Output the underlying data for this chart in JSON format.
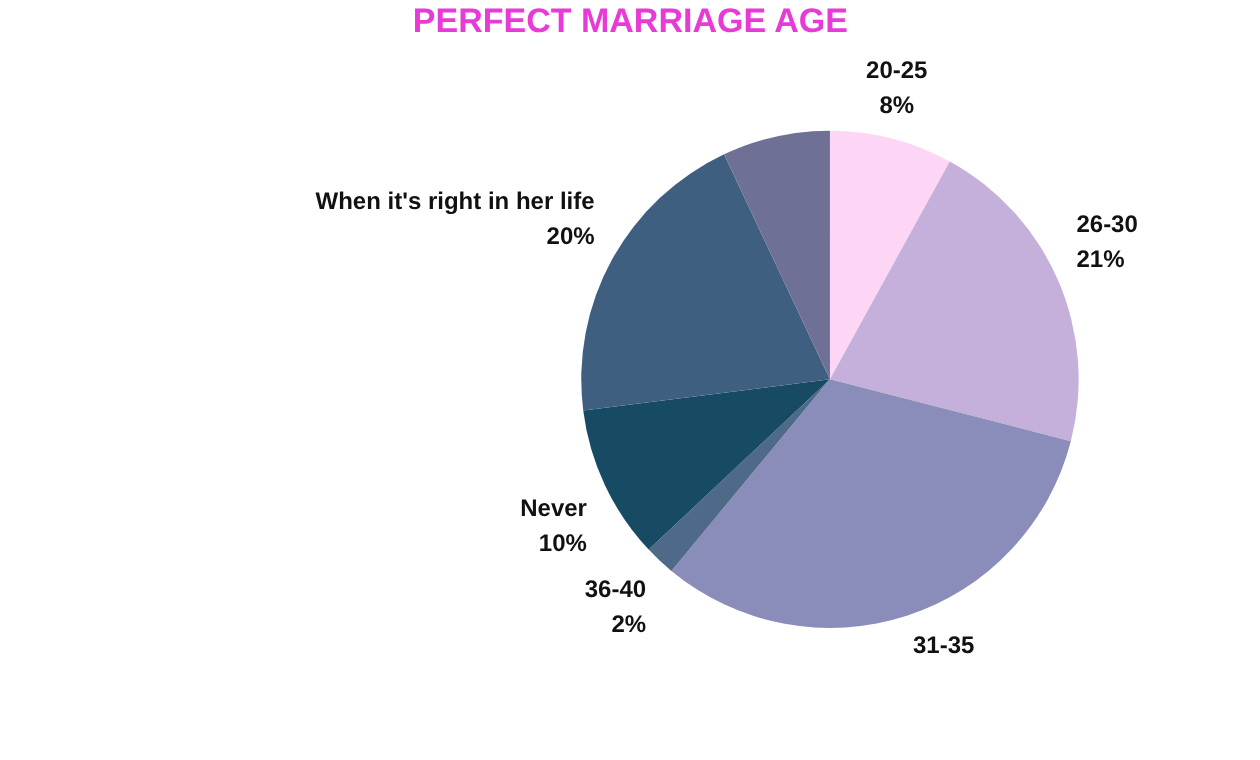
{
  "chart_data": {
    "type": "pie",
    "title": "PERFECT MARRIAGE AGE",
    "categories": [
      "20-25",
      "26-30",
      "31-35",
      "36-40",
      "Never",
      "When it's right in her life",
      null
    ],
    "values": [
      8,
      21,
      32,
      2,
      10,
      20,
      7
    ],
    "value_labels": [
      "8%",
      "21%",
      null,
      "2%",
      "10%",
      "20%",
      null
    ],
    "colors": [
      "#fdd5f5",
      "#c4b0db",
      "#8a8cba",
      "#4f6a88",
      "#174a63",
      "#3e5f80",
      "#6e7096"
    ],
    "legend": false
  }
}
